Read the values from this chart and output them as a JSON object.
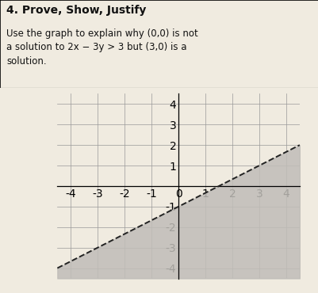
{
  "title": "4. Prove, Show, Justify",
  "description_lines": [
    "Use the graph to explain why (0,0) is not",
    "a solution to 2x − 3y > 3 but (3,0) is a",
    "solution."
  ],
  "xlim": [
    -4.5,
    4.5
  ],
  "ylim": [
    -4.5,
    4.5
  ],
  "xticks": [
    -4,
    -3,
    -2,
    -1,
    0,
    1,
    2,
    3,
    4
  ],
  "yticks": [
    -4,
    -3,
    -2,
    -1,
    0,
    1,
    2,
    3,
    4
  ],
  "shade_color": "#c0bdb8",
  "shade_alpha": 0.85,
  "line_color": "#222222",
  "grid_color": "#999999",
  "box_background": "#f0ebe0",
  "text_color": "#111111",
  "tick_fontsize": 7,
  "title_fontsize": 10,
  "desc_fontsize": 8.5
}
